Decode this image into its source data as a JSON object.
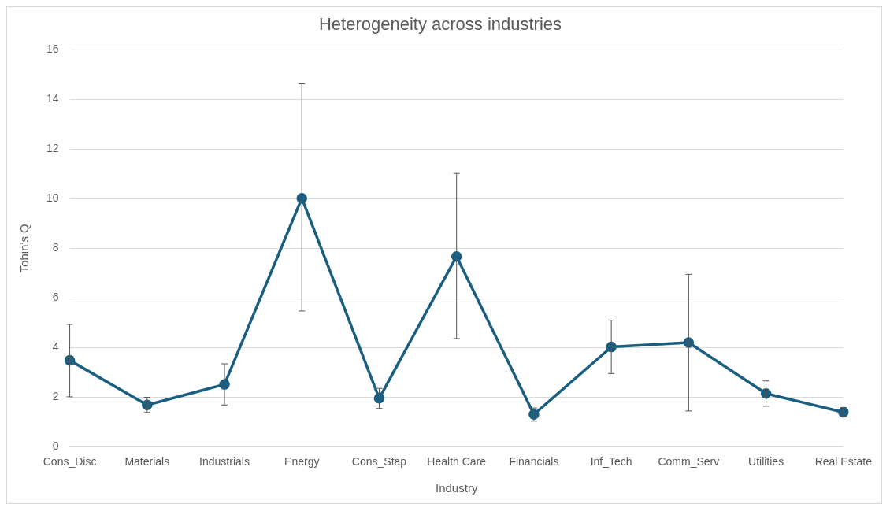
{
  "chart_data": {
    "type": "line",
    "title": "Heterogeneity across industries",
    "xlabel": "Industry",
    "ylabel": "Tobin's Q",
    "categories": [
      "Cons_Disc",
      "Materials",
      "Industrials",
      "Energy",
      "Cons_Stap",
      "Health Care",
      "Financials",
      "Inf_Tech",
      "Comm_Serv",
      "Utilities",
      "Real Estate"
    ],
    "series": [
      {
        "color": "#1a5e80",
        "values": [
          3.48,
          1.68,
          2.51,
          10.02,
          1.95,
          7.67,
          1.3,
          4.02,
          4.2,
          2.14,
          1.39
        ],
        "errors": [
          [
            2.01,
            4.93
          ],
          [
            1.38,
            1.99
          ],
          [
            1.68,
            3.34
          ],
          [
            5.47,
            14.63
          ],
          [
            1.54,
            2.35
          ],
          [
            4.36,
            11.02
          ],
          [
            1.03,
            1.56
          ],
          [
            2.95,
            5.1
          ],
          [
            1.44,
            6.95
          ],
          [
            1.63,
            2.65
          ],
          [
            1.23,
            1.58
          ]
        ]
      }
    ],
    "ylim": [
      0,
      16
    ],
    "yticks": [
      0,
      2,
      4,
      6,
      8,
      10,
      12,
      14,
      16
    ],
    "grid": "y",
    "legend": false,
    "marker": "circle",
    "line_style": "solid"
  }
}
